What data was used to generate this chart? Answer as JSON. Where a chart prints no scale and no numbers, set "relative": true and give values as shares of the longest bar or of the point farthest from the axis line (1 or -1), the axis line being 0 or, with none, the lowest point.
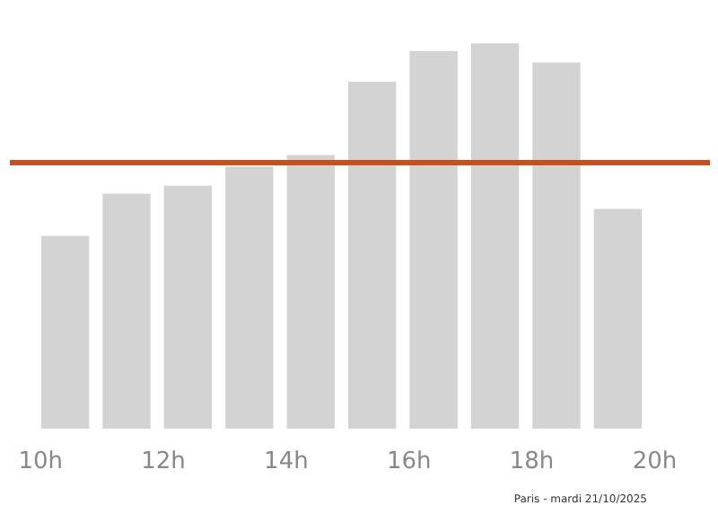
{
  "chart_data": {
    "type": "bar",
    "relative": true,
    "x": [
      10.4,
      11.4,
      12.4,
      13.4,
      14.4,
      15.4,
      16.4,
      17.4,
      18.4,
      19.4
    ],
    "values": [
      0.5,
      0.61,
      0.63,
      0.68,
      0.71,
      0.9,
      0.98,
      1.0,
      0.95,
      0.57
    ],
    "color": "#d3d3d3",
    "xlim": [
      9.5,
      20.9
    ],
    "xticks": [
      {
        "value": 10,
        "label": "10h"
      },
      {
        "value": 12,
        "label": "12h"
      },
      {
        "value": 14,
        "label": "14h"
      },
      {
        "value": 16,
        "label": "16h"
      },
      {
        "value": 18,
        "label": "18h"
      },
      {
        "value": 20,
        "label": "20h"
      }
    ],
    "ref_lines": [
      {
        "axis": "y",
        "value": 0.69,
        "label": null,
        "color": "#c4501c"
      }
    ],
    "annotations": [
      "Paris - mardi 21/10/2025"
    ],
    "grid": false
  }
}
